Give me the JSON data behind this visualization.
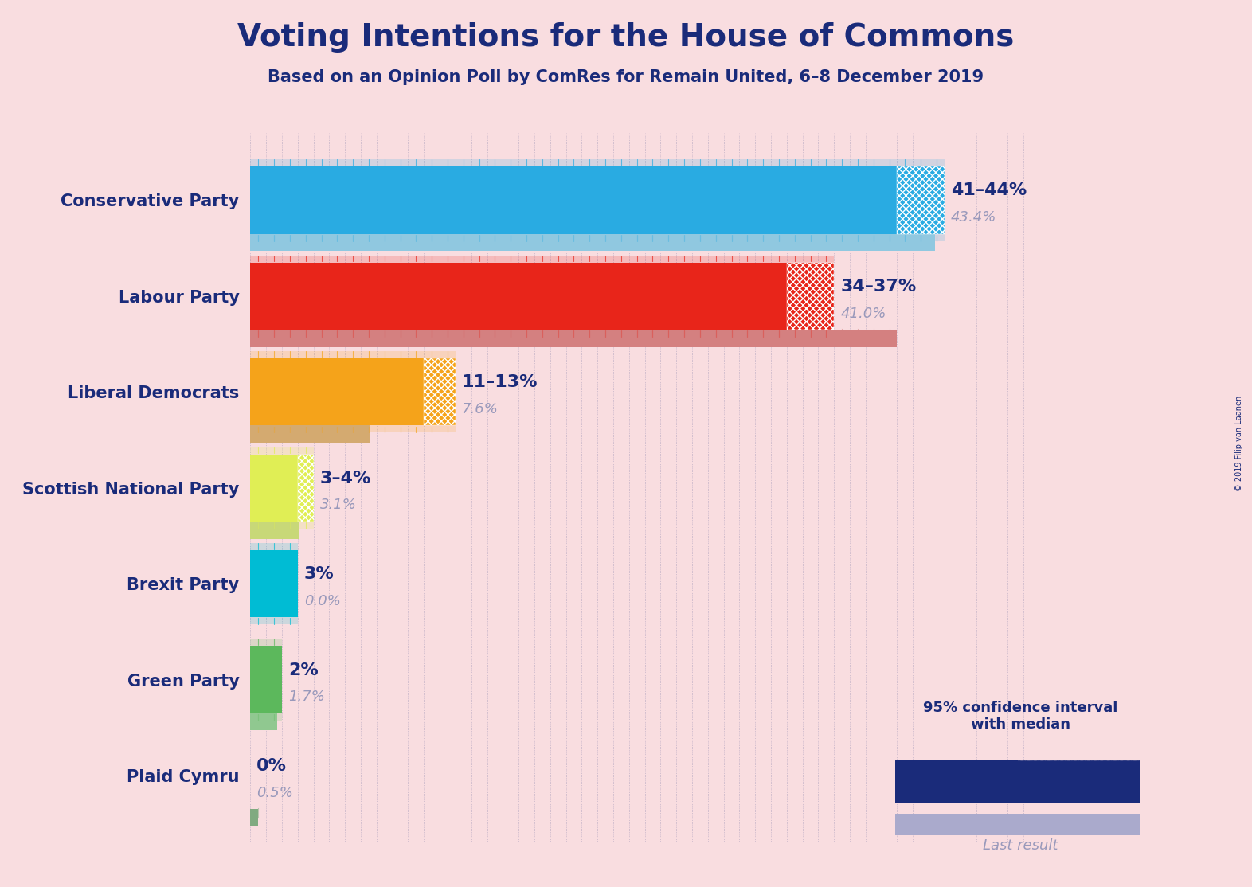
{
  "title": "Voting Intentions for the House of Commons",
  "subtitle": "Based on an Opinion Poll by ComRes for Remain United, 6–8 December 2019",
  "copyright": "© 2019 Filip van Laanen",
  "bg": "#f9dde0",
  "title_color": "#1a2b7a",
  "parties": [
    "Conservative Party",
    "Labour Party",
    "Liberal Democrats",
    "Scottish National Party",
    "Brexit Party",
    "Green Party",
    "Plaid Cymru"
  ],
  "bar_colors": [
    "#29abe2",
    "#e8251a",
    "#f5a31a",
    "#e0ee55",
    "#00bcd4",
    "#5cb85c",
    "#2e7d32"
  ],
  "last_colors": [
    "#90c8e0",
    "#d48080",
    "#d4aa70",
    "#c8d878",
    "#80cccc",
    "#90c890",
    "#80aa80"
  ],
  "ci_low": [
    41,
    34,
    11,
    3,
    3,
    2,
    0
  ],
  "ci_high": [
    44,
    37,
    13,
    4,
    3,
    2,
    0
  ],
  "last_result": [
    43.4,
    41.0,
    7.6,
    3.1,
    0.0,
    1.7,
    0.5
  ],
  "label_range": [
    "41–44%",
    "34–37%",
    "11–13%",
    "3–4%",
    "3%",
    "2%",
    "0%"
  ],
  "label_last": [
    "43.4%",
    "41.0%",
    "7.6%",
    "3.1%",
    "0.0%",
    "1.7%",
    "0.5%"
  ],
  "xlim": 50,
  "legend_ci_color": "#1a2b7a",
  "legend_last_color": "#aaaacc"
}
